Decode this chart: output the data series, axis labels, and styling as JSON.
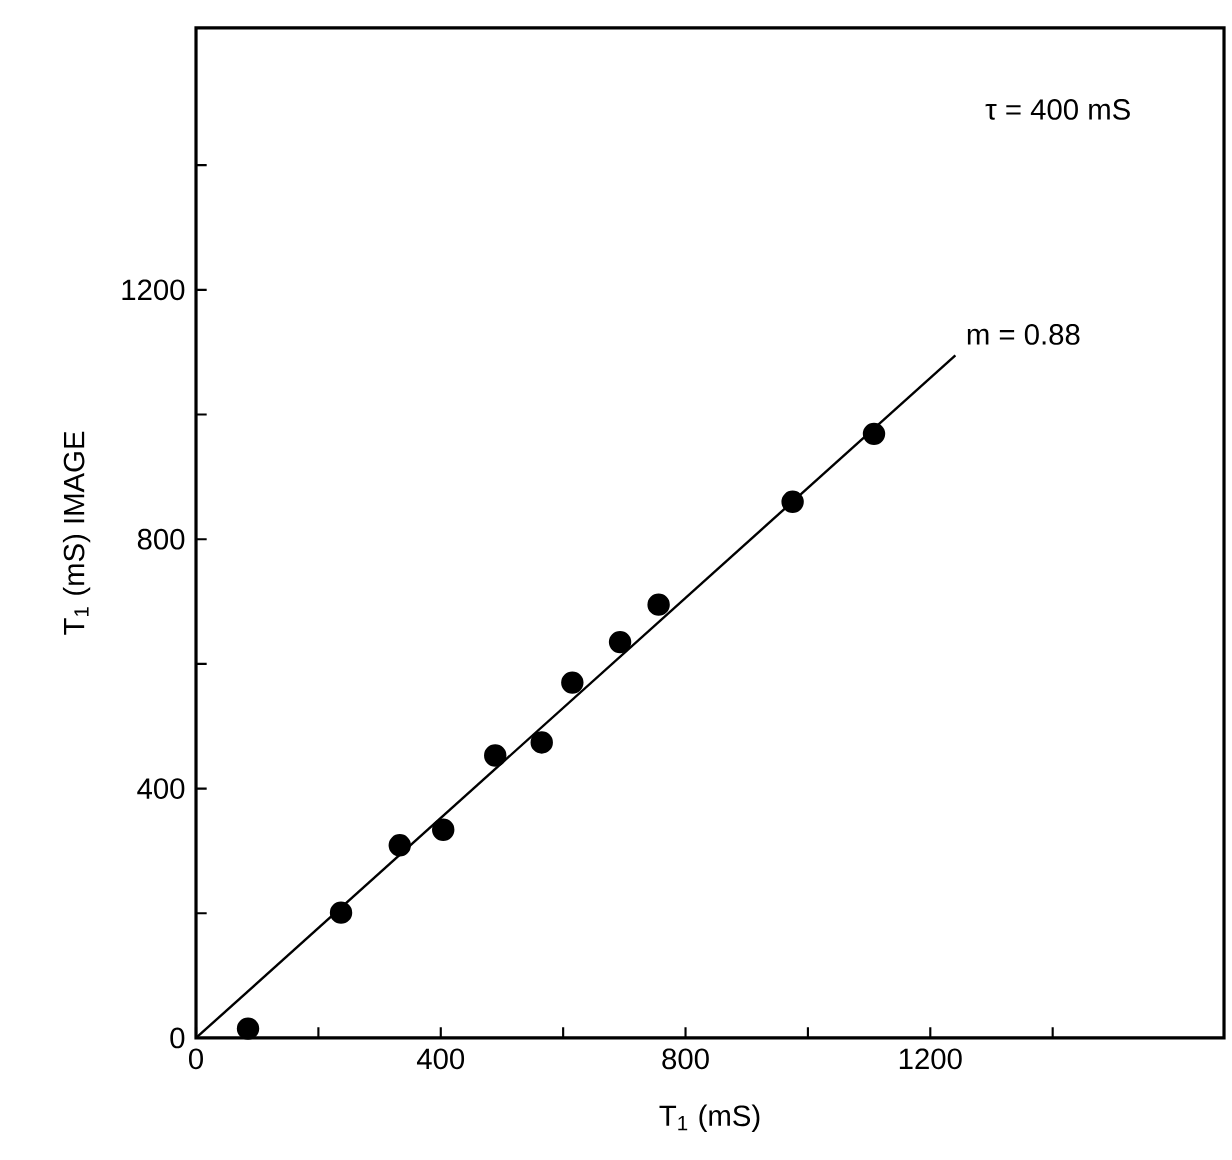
{
  "chart_data": {
    "type": "scatter",
    "xlabel": "T$_{1}$ (mS)",
    "ylabel": "T$_{1}$ (mS)    IMAGE",
    "xlim": [
      0,
      1680
    ],
    "ylim": [
      0,
      1620
    ],
    "xticks": [
      0,
      {
        "value": 200,
        "label": null
      },
      400,
      {
        "value": 600,
        "label": null
      },
      800,
      {
        "value": 1000,
        "label": null
      },
      1200,
      {
        "value": 1400,
        "label": null
      }
    ],
    "yticks": [
      0,
      {
        "value": 200,
        "label": null
      },
      400,
      {
        "value": 600,
        "label": null
      },
      800,
      {
        "value": 1000,
        "label": null
      },
      1200,
      {
        "value": 1400,
        "label": null
      }
    ],
    "grid": false,
    "annotations": [
      "τ = 400 mS",
      {
        "text": "m = 0.88",
        "x": 1241,
        "y": 1095
      }
    ],
    "series": [
      {
        "marker": "circle",
        "color": "#000000",
        "x": [
          85,
          237,
          333,
          404,
          489,
          565,
          615,
          693,
          756,
          975,
          1108
        ],
        "values": [
          15,
          201,
          309,
          334,
          453,
          474,
          570,
          635,
          695,
          860,
          969
        ]
      },
      {
        "type": "line",
        "marker": "none",
        "color": "#000000",
        "x": [
          0,
          1241
        ],
        "values": [
          0,
          1095
        ]
      }
    ]
  }
}
